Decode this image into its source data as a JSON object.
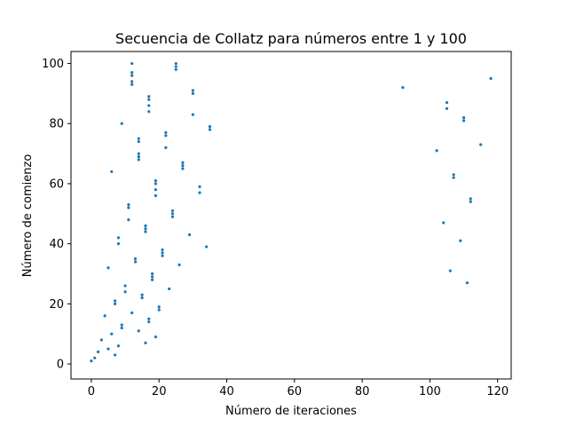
{
  "chart_data": {
    "type": "scatter",
    "title": "Secuencia de Collatz para números entre 1 y 100",
    "xlabel": "Número de iteraciones",
    "ylabel": "Número de comienzo",
    "xlim": [
      -6,
      124
    ],
    "ylim": [
      -5,
      104
    ],
    "xticks": [
      0,
      20,
      40,
      60,
      80,
      100,
      120
    ],
    "yticks": [
      0,
      20,
      40,
      60,
      80,
      100
    ],
    "grid": false,
    "legend": "none",
    "marker_color": "#1f77b4",
    "series": [
      {
        "x": [
          0,
          1,
          7,
          2,
          5,
          8,
          16,
          3,
          19,
          6,
          14,
          9,
          9,
          17,
          17,
          4,
          12,
          20,
          20,
          7,
          7,
          15,
          15,
          10,
          23,
          10,
          111,
          18,
          18,
          18,
          106,
          5,
          26,
          13,
          13,
          21,
          21,
          21,
          34,
          8,
          109,
          8,
          29,
          16,
          16,
          16,
          104,
          11,
          24,
          24,
          24,
          11,
          11,
          112,
          112,
          19,
          32,
          19,
          32,
          19,
          19,
          107,
          107,
          6,
          27,
          27,
          27,
          14,
          14,
          14,
          102,
          22,
          115,
          14,
          14,
          22,
          22,
          35,
          35,
          9,
          110,
          110,
          30,
          17,
          105,
          17,
          105,
          17,
          17,
          30,
          30,
          92,
          12,
          12,
          118,
          12,
          12,
          25,
          25,
          25,
          12
        ],
        "y": [
          1,
          2,
          3,
          4,
          5,
          6,
          7,
          8,
          9,
          10,
          11,
          12,
          13,
          14,
          15,
          16,
          17,
          18,
          19,
          20,
          21,
          22,
          23,
          24,
          25,
          26,
          27,
          28,
          29,
          30,
          31,
          32,
          33,
          34,
          35,
          36,
          37,
          38,
          39,
          40,
          41,
          42,
          43,
          44,
          45,
          46,
          47,
          48,
          49,
          50,
          51,
          52,
          53,
          54,
          55,
          56,
          57,
          58,
          59,
          60,
          61,
          62,
          63,
          64,
          65,
          66,
          67,
          68,
          69,
          70,
          71,
          72,
          73,
          74,
          75,
          76,
          77,
          78,
          79,
          80,
          81,
          82,
          83,
          84,
          85,
          86,
          87,
          88,
          89,
          90,
          91,
          92,
          93,
          94,
          95,
          96,
          97,
          98,
          99,
          100,
          100
        ]
      }
    ]
  }
}
